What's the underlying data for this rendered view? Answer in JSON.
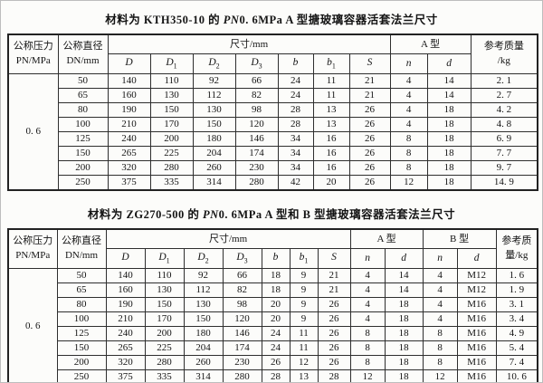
{
  "titles": {
    "t1": {
      "p1": "材料为 KTH350-10 的 ",
      "italic": "PN",
      "p2": "0. 6MPa A 型搪玻璃容器活套法兰尺寸"
    },
    "t2": {
      "p1": "材料为 ZG270-500 的 ",
      "italic": "PN",
      "p2": "0. 6MPa A 型和 B 型搪玻璃容器活套法兰尺寸"
    }
  },
  "headers": {
    "pressure": {
      "line1": "公称压力",
      "l2i": "PN",
      "l2r": "/MPa"
    },
    "diameter": {
      "line1": "公称直径",
      "l2i": "DN",
      "l2r": "/mm"
    },
    "size": "尺寸/mm",
    "type_a": "A 型",
    "type_b": "B 型",
    "ref_t1": {
      "line1": "参考质量",
      "line2": "/kg"
    },
    "ref_t2": {
      "line1": "参考质",
      "line2": "量/kg"
    },
    "dims": [
      {
        "base": "D",
        "sub": ""
      },
      {
        "base": "D",
        "sub": "1"
      },
      {
        "base": "D",
        "sub": "2"
      },
      {
        "base": "D",
        "sub": "3"
      },
      {
        "base": "b",
        "sub": ""
      },
      {
        "base": "b",
        "sub": "1"
      },
      {
        "base": "S",
        "sub": ""
      }
    ],
    "n": "n",
    "d": "d"
  },
  "table1": {
    "pressure": "0. 6",
    "rows": [
      [
        "50",
        "140",
        "110",
        "92",
        "66",
        "24",
        "11",
        "21",
        "4",
        "14",
        "2. 1"
      ],
      [
        "65",
        "160",
        "130",
        "112",
        "82",
        "24",
        "11",
        "21",
        "4",
        "14",
        "2. 7"
      ],
      [
        "80",
        "190",
        "150",
        "130",
        "98",
        "28",
        "13",
        "26",
        "4",
        "18",
        "4. 2"
      ],
      [
        "100",
        "210",
        "170",
        "150",
        "120",
        "28",
        "13",
        "26",
        "4",
        "18",
        "4. 8"
      ],
      [
        "125",
        "240",
        "200",
        "180",
        "146",
        "34",
        "16",
        "26",
        "8",
        "18",
        "6. 9"
      ],
      [
        "150",
        "265",
        "225",
        "204",
        "174",
        "34",
        "16",
        "26",
        "8",
        "18",
        "7. 7"
      ],
      [
        "200",
        "320",
        "280",
        "260",
        "230",
        "34",
        "16",
        "26",
        "8",
        "18",
        "9. 7"
      ],
      [
        "250",
        "375",
        "335",
        "314",
        "280",
        "42",
        "20",
        "26",
        "12",
        "18",
        "14. 9"
      ]
    ]
  },
  "table2": {
    "pressure": "0. 6",
    "rows": [
      [
        "50",
        "140",
        "110",
        "92",
        "66",
        "18",
        "9",
        "21",
        "4",
        "14",
        "4",
        "M12",
        "1. 6"
      ],
      [
        "65",
        "160",
        "130",
        "112",
        "82",
        "18",
        "9",
        "21",
        "4",
        "14",
        "4",
        "M12",
        "1. 9"
      ],
      [
        "80",
        "190",
        "150",
        "130",
        "98",
        "20",
        "9",
        "26",
        "4",
        "18",
        "4",
        "M16",
        "3. 1"
      ],
      [
        "100",
        "210",
        "170",
        "150",
        "120",
        "20",
        "9",
        "26",
        "4",
        "18",
        "4",
        "M16",
        "3. 4"
      ],
      [
        "125",
        "240",
        "200",
        "180",
        "146",
        "24",
        "11",
        "26",
        "8",
        "18",
        "8",
        "M16",
        "4. 9"
      ],
      [
        "150",
        "265",
        "225",
        "204",
        "174",
        "24",
        "11",
        "26",
        "8",
        "18",
        "8",
        "M16",
        "5. 4"
      ],
      [
        "200",
        "320",
        "280",
        "260",
        "230",
        "26",
        "12",
        "26",
        "8",
        "18",
        "8",
        "M16",
        "7. 4"
      ],
      [
        "250",
        "375",
        "335",
        "314",
        "280",
        "28",
        "13",
        "28",
        "12",
        "18",
        "12",
        "M16",
        "10. 6"
      ]
    ]
  }
}
